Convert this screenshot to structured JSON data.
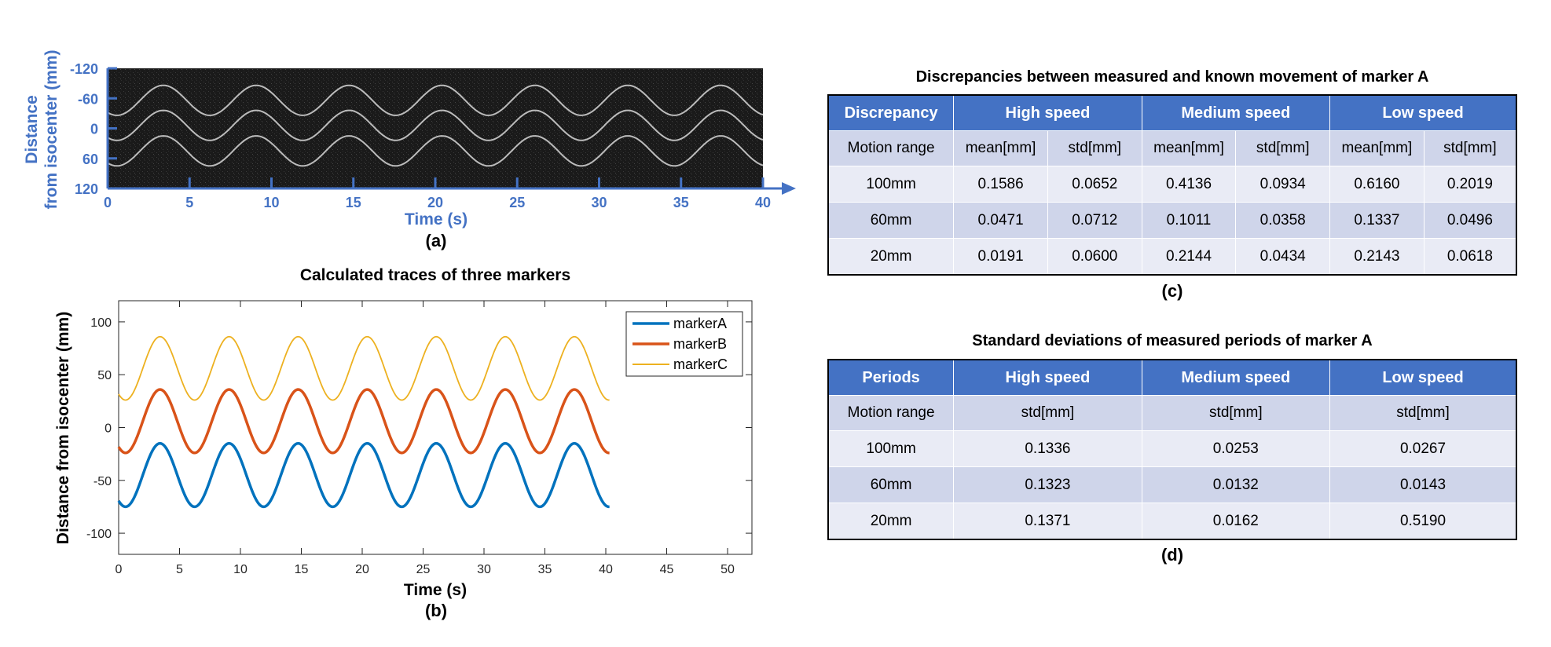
{
  "panel_a": {
    "caption": "(a)",
    "ylabel_line1": "Distance",
    "ylabel_line2": "from isocenter (mm)",
    "xlabel": "Time (s)",
    "yticks": [
      "-120",
      "-60",
      "0",
      "60",
      "120"
    ],
    "xticks": [
      "0",
      "5",
      "10",
      "15",
      "20",
      "25",
      "30",
      "35",
      "40"
    ],
    "axis_color": "#4472c4"
  },
  "panel_b": {
    "caption": "(b)",
    "chart_data": {
      "type": "line",
      "title": "Calculated traces of three markers",
      "xlabel": "Time (s)",
      "ylabel": "Distance from isocenter (mm)",
      "xlim": [
        0,
        52
      ],
      "ylim": [
        -120,
        120
      ],
      "xticks": [
        0,
        5,
        10,
        15,
        20,
        25,
        30,
        35,
        40,
        45,
        50
      ],
      "yticks": [
        100,
        50,
        0,
        -50,
        -100
      ],
      "legend_position": "top-right",
      "series": [
        {
          "name": "markerA",
          "color": "#0072bd",
          "center": -45,
          "amplitude": 30,
          "period_s": 5.67,
          "peak_at_s": 3.4,
          "x_range": [
            0,
            40.3
          ]
        },
        {
          "name": "markerB",
          "color": "#d95319",
          "center": 6,
          "amplitude": 30,
          "period_s": 5.67,
          "peak_at_s": 3.4,
          "x_range": [
            0,
            40.3
          ]
        },
        {
          "name": "markerC",
          "color": "#edb120",
          "center": 56,
          "amplitude": 30,
          "period_s": 5.67,
          "peak_at_s": 3.4,
          "x_range": [
            0,
            40.3
          ]
        }
      ]
    }
  },
  "table_c": {
    "title": "Discrepancies between measured and known movement of marker A",
    "caption": "(c)",
    "headers": [
      "Discrepancy",
      "High speed",
      "Medium speed",
      "Low speed"
    ],
    "subheader": [
      "Motion range",
      "mean[mm]",
      "std[mm]",
      "mean[mm]",
      "std[mm]",
      "mean[mm]",
      "std[mm]"
    ],
    "rows": [
      [
        "100mm",
        "0.1586",
        "0.0652",
        "0.4136",
        "0.0934",
        "0.6160",
        "0.2019"
      ],
      [
        "60mm",
        "0.0471",
        "0.0712",
        "0.1011",
        "0.0358",
        "0.1337",
        "0.0496"
      ],
      [
        "20mm",
        "0.0191",
        "0.0600",
        "0.2144",
        "0.0434",
        "0.2143",
        "0.0618"
      ]
    ]
  },
  "table_d": {
    "title": "Standard deviations of measured periods of marker A",
    "caption": "(d)",
    "headers": [
      "Periods",
      "High speed",
      "Medium speed",
      "Low speed"
    ],
    "subheader": [
      "Motion range",
      "std[mm]",
      "std[mm]",
      "std[mm]"
    ],
    "rows": [
      [
        "100mm",
        "0.1336",
        "0.0253",
        "0.0267"
      ],
      [
        "60mm",
        "0.1323",
        "0.0132",
        "0.0143"
      ],
      [
        "20mm",
        "0.1371",
        "0.0162",
        "0.5190"
      ]
    ]
  }
}
